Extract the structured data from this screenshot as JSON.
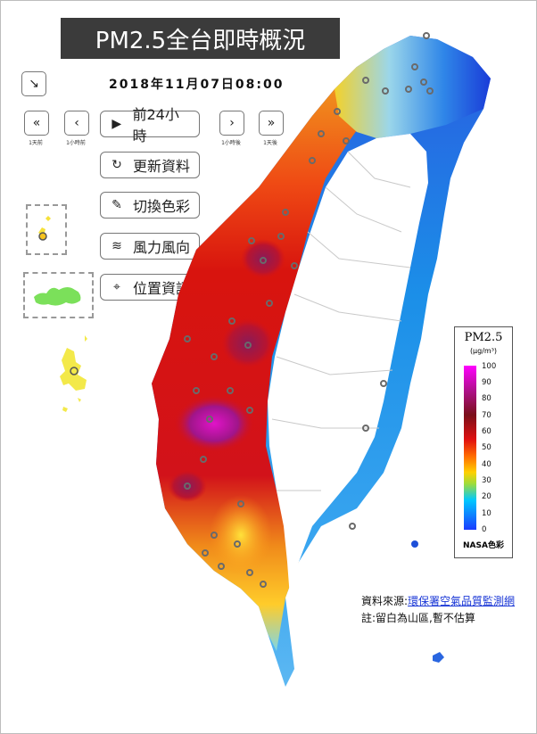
{
  "title": "PM2.5全台即時概況",
  "datetime": "2018年11月07日08:00",
  "nav": [
    {
      "glyph": "«",
      "caption": "1天前"
    },
    {
      "glyph": "‹",
      "caption": "1小時前"
    },
    {
      "glyph": "›",
      "caption": "1小時後"
    },
    {
      "glyph": "»",
      "caption": "1天後"
    }
  ],
  "menu": [
    {
      "icon": "play-icon",
      "glyph": "▶",
      "label": "前24小時"
    },
    {
      "icon": "refresh-icon",
      "glyph": "↻",
      "label": "更新資料"
    },
    {
      "icon": "brush-icon",
      "glyph": "✎",
      "label": "切換色彩"
    },
    {
      "icon": "wind-icon",
      "glyph": "≋",
      "label": "風力風向"
    },
    {
      "icon": "location-pin-icon",
      "glyph": "⌖",
      "label": "位置資訊"
    }
  ],
  "collapse_glyph": "↘",
  "legend": {
    "title": "PM2.5",
    "unit": "(μg/m³)",
    "ticks": [
      "100",
      "90",
      "80",
      "70",
      "60",
      "50",
      "40",
      "30",
      "20",
      "10",
      "0"
    ],
    "footer": "NASA色彩",
    "colors": {
      "max": "#ff00ff",
      "high": "#7a0f1a",
      "mid": "#e01010",
      "low_mid": "#ffd000",
      "low": "#1a3cff"
    }
  },
  "source_prefix": "資料來源:",
  "source_link": "環保署空氣品質監測網",
  "note": "註:留白為山區,暫不估算"
}
